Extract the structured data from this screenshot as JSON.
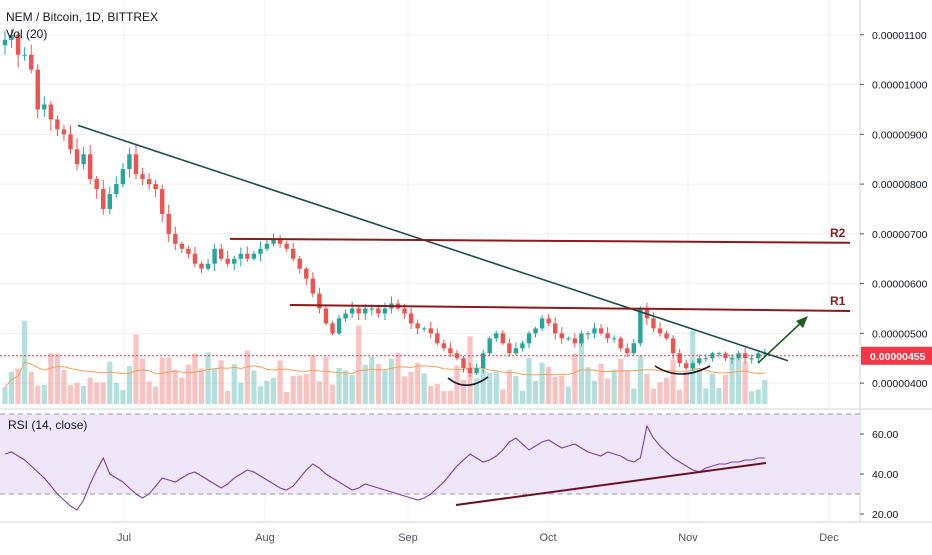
{
  "header": {
    "symbol_title": "NEM / Bitcoin, 1D, BITTREX",
    "volume_label": "Vol (20)",
    "rsi_label": "RSI (14, close)"
  },
  "colors": {
    "up": "#26a69a",
    "down": "#ef5350",
    "trendline": "#1e4d4f",
    "resistance": "#8b1a1a",
    "support": "#6b1020",
    "rsi_line": "#7e3ea8",
    "rsi_band": "#f0e6fa",
    "volume_ma": "#f5a05a",
    "price_marker": "#f23645",
    "arrow": "#1f5c1f"
  },
  "chart_data": [
    {
      "type": "candlestick",
      "title": "NEM / Bitcoin, 1D, BITTREX",
      "x_ticks": [
        "Jul",
        "Aug",
        "Sep",
        "Oct",
        "Nov",
        "Dec"
      ],
      "y_ticks": [
        "0.00000400",
        "0.00000500",
        "0.00000600",
        "0.00000700",
        "0.00000800",
        "0.00000900",
        "0.00001000",
        "0.00001100"
      ],
      "ylim": [
        3.5e-06,
        1.17e-05
      ],
      "last_price": "0.00000455",
      "close": [
        1.09e-05,
        1.1e-05,
        1.06e-05,
        1.06e-05,
        1.03e-05,
        9.5e-06,
        9.6e-06,
        9.3e-06,
        9.1e-06,
        9e-06,
        8.7e-06,
        8.4e-06,
        8.6e-06,
        8.1e-06,
        7.9e-06,
        7.5e-06,
        7.8e-06,
        8e-06,
        8.3e-06,
        8.6e-06,
        8.2e-06,
        8.1e-06,
        8e-06,
        7.9e-06,
        7.4e-06,
        7e-06,
        6.8e-06,
        6.7e-06,
        6.6e-06,
        6.4e-06,
        6.3e-06,
        6.4e-06,
        6.7e-06,
        6.5e-06,
        6.4e-06,
        6.5e-06,
        6.6e-06,
        6.5e-06,
        6.6e-06,
        6.7e-06,
        6.8e-06,
        6.9e-06,
        6.8e-06,
        6.7e-06,
        6.5e-06,
        6.3e-06,
        6.1e-06,
        5.8e-06,
        5.5e-06,
        5.2e-06,
        5e-06,
        5.3e-06,
        5.4e-06,
        5.5e-06,
        5.4e-06,
        5.5e-06,
        5.5e-06,
        5.4e-06,
        5.5e-06,
        5.6e-06,
        5.5e-06,
        5.4e-06,
        5.2e-06,
        5.1e-06,
        5.1e-06,
        5e-06,
        4.8e-06,
        4.7e-06,
        4.6e-06,
        4.5e-06,
        4.3e-06,
        4.2e-06,
        4.3e-06,
        4.6e-06,
        4.9e-06,
        5e-06,
        4.8e-06,
        4.6e-06,
        4.7e-06,
        4.8e-06,
        5e-06,
        5.1e-06,
        5.3e-06,
        5.2e-06,
        5e-06,
        4.9e-06,
        4.9e-06,
        4.8e-06,
        5e-06,
        5e-06,
        5.1e-06,
        5e-06,
        4.9e-06,
        4.9e-06,
        4.7e-06,
        4.6e-06,
        4.8e-06,
        5.5e-06,
        5.3e-06,
        5.1e-06,
        5e-06,
        4.9e-06,
        4.6e-06,
        4.4e-06,
        4.3e-06,
        4.4e-06,
        4.5e-06,
        4.5e-06,
        4.6e-06,
        4.6e-06,
        4.5e-06,
        4.5e-06,
        4.6e-06,
        4.5e-06,
        4.5e-06,
        4.6e-06,
        4.6e-06
      ],
      "annotations": [
        "R2",
        "R1"
      ]
    },
    {
      "type": "line",
      "title": "RSI (14, close)",
      "y_ticks": [
        "20.00",
        "40.00",
        "60.00"
      ],
      "ylim": [
        16,
        72
      ],
      "bands": [
        30,
        70
      ],
      "values": [
        50,
        51,
        49,
        47,
        44,
        41,
        38,
        34,
        30,
        27,
        24,
        22,
        27,
        35,
        42,
        48,
        40,
        38,
        36,
        33,
        30,
        28,
        30,
        34,
        38,
        37,
        36,
        38,
        40,
        41,
        39,
        37,
        35,
        33,
        35,
        38,
        40,
        42,
        41,
        39,
        37,
        35,
        33,
        32,
        34,
        38,
        42,
        45,
        43,
        40,
        38,
        36,
        34,
        32,
        33,
        35,
        34,
        33,
        32,
        31,
        30,
        29,
        28,
        27,
        28,
        30,
        33,
        36,
        40,
        44,
        47,
        50,
        48,
        46,
        47,
        49,
        52,
        56,
        58,
        55,
        52,
        54,
        56,
        57,
        55,
        53,
        54,
        55,
        53,
        51,
        50,
        49,
        51,
        50,
        49,
        47,
        46,
        48,
        64,
        58,
        54,
        51,
        48,
        46,
        44,
        42,
        41,
        43,
        44,
        45,
        45,
        46,
        46,
        47,
        47,
        48,
        48
      ]
    }
  ]
}
